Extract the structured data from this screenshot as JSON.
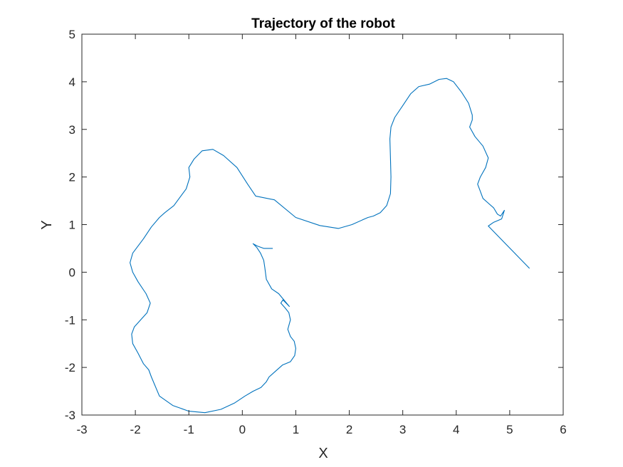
{
  "chart_data": {
    "type": "line",
    "title": "Trajectory of the robot",
    "xlabel": "X",
    "ylabel": "Y",
    "xlim": [
      -3,
      6
    ],
    "ylim": [
      -3,
      5
    ],
    "xticks": [
      -3,
      -2,
      -1,
      0,
      1,
      2,
      3,
      4,
      5,
      6
    ],
    "yticks": [
      -3,
      -2,
      -1,
      0,
      1,
      2,
      3,
      4,
      5
    ],
    "grid": false,
    "legend": "none",
    "series": [
      {
        "color": "#0072BD",
        "x": [
          0.57,
          0.4,
          0.28,
          0.2,
          0.27,
          0.34,
          0.4,
          0.42,
          0.45,
          0.55,
          0.68,
          0.88,
          0.76,
          0.72,
          0.8,
          0.87,
          0.9,
          0.85,
          0.9,
          0.97,
          1.0,
          0.98,
          0.9,
          0.75,
          0.6,
          0.5,
          0.45,
          0.35,
          0.2,
          0.05,
          -0.15,
          -0.4,
          -0.7,
          -1.0,
          -1.3,
          -1.55,
          -1.7,
          -1.75,
          -1.85,
          -1.95,
          -2.05,
          -2.07,
          -2.02,
          -1.9,
          -1.78,
          -1.72,
          -1.8,
          -1.95,
          -2.05,
          -2.1,
          -2.05,
          -1.85,
          -1.7,
          -1.55,
          -1.45,
          -1.28,
          -1.15,
          -1.05,
          -0.98,
          -1.0,
          -0.9,
          -0.75,
          -0.55,
          -0.35,
          -0.1,
          0.1,
          0.25,
          0.6,
          1.0,
          1.45,
          1.8,
          2.05,
          2.25,
          2.35,
          2.45,
          2.58,
          2.7,
          2.77,
          2.78,
          2.77,
          2.76,
          2.78,
          2.85,
          3.0,
          3.15,
          3.3,
          3.5,
          3.68,
          3.82,
          3.95,
          4.1,
          4.23,
          4.3,
          4.3,
          4.25,
          4.35,
          4.5,
          4.6,
          4.55,
          4.45,
          4.4,
          4.45,
          4.5,
          4.6,
          4.7,
          4.77,
          4.83,
          4.9,
          4.85,
          4.7,
          4.6,
          5.37
        ],
        "y": [
          0.5,
          0.5,
          0.55,
          0.6,
          0.52,
          0.4,
          0.25,
          0.1,
          -0.15,
          -0.35,
          -0.45,
          -0.72,
          -0.58,
          -0.65,
          -0.75,
          -0.85,
          -1.0,
          -1.2,
          -1.35,
          -1.45,
          -1.6,
          -1.75,
          -1.88,
          -1.95,
          -2.1,
          -2.2,
          -2.3,
          -2.42,
          -2.5,
          -2.6,
          -2.75,
          -2.88,
          -2.95,
          -2.92,
          -2.8,
          -2.6,
          -2.2,
          -2.05,
          -1.92,
          -1.7,
          -1.5,
          -1.3,
          -1.15,
          -1.0,
          -0.85,
          -0.65,
          -0.45,
          -0.2,
          0.0,
          0.2,
          0.4,
          0.7,
          0.95,
          1.15,
          1.25,
          1.4,
          1.6,
          1.75,
          2.0,
          2.2,
          2.38,
          2.55,
          2.58,
          2.45,
          2.2,
          1.85,
          1.6,
          1.52,
          1.15,
          0.98,
          0.92,
          1.0,
          1.1,
          1.15,
          1.18,
          1.25,
          1.4,
          1.65,
          2.0,
          2.4,
          2.8,
          3.05,
          3.25,
          3.5,
          3.75,
          3.9,
          3.95,
          4.05,
          4.07,
          4.0,
          3.78,
          3.55,
          3.3,
          3.2,
          3.05,
          2.85,
          2.65,
          2.4,
          2.2,
          2.0,
          1.85,
          1.7,
          1.55,
          1.45,
          1.35,
          1.22,
          1.18,
          1.3,
          1.12,
          1.05,
          0.97,
          0.08
        ]
      }
    ]
  }
}
